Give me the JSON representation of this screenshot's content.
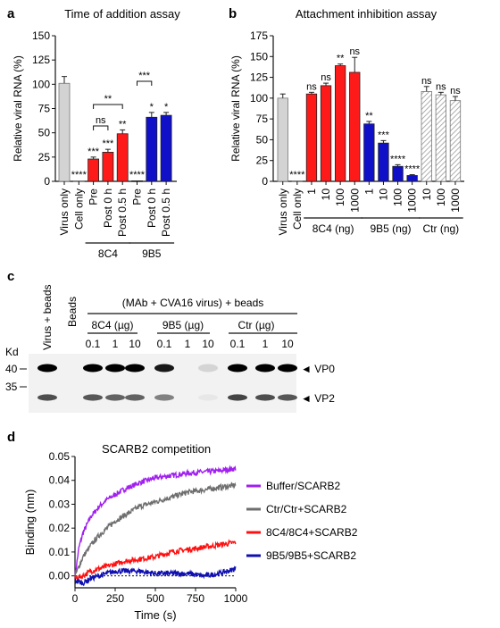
{
  "panels": {
    "a": "a",
    "b": "b",
    "c": "c",
    "d": "d"
  },
  "colors": {
    "gray": "#d3d3d3",
    "red": "#ff1a1a",
    "blue": "#1010c8",
    "hatch": "#bdbdbd",
    "purple": "#a020f0",
    "darkgray": "#6e6e6e",
    "lred": "#ff1010",
    "lblue": "#1010b0"
  },
  "chart_data": [
    {
      "id": "a",
      "type": "bar",
      "title": "Time of addition assay",
      "ylabel": "Relative viral RNA (%)",
      "ylim": [
        0,
        150
      ],
      "yticks": [
        0,
        25,
        50,
        75,
        100,
        125,
        150
      ],
      "categories": [
        "Virus only",
        "Cell only",
        "Pre",
        "Post 0 h",
        "Post 0.5 h",
        "Pre",
        "Post 0 h",
        "Post 0.5 h"
      ],
      "values": [
        101,
        0.5,
        23,
        30,
        49,
        0.5,
        66,
        68
      ],
      "errors": [
        7,
        0.5,
        2,
        3,
        4,
        0.5,
        5,
        3
      ],
      "colors": [
        "gray",
        "gray",
        "red",
        "red",
        "red",
        "blue",
        "blue",
        "blue"
      ],
      "significance": [
        "",
        "****",
        "***",
        "***",
        "**",
        "****",
        "*",
        "*"
      ],
      "comparisons": [
        {
          "from": 2,
          "to": 3,
          "label": "ns"
        },
        {
          "from": 2,
          "to": 4,
          "label": "**"
        },
        {
          "from": 5,
          "to": 6,
          "label": "***"
        }
      ],
      "groups": [
        {
          "label": "8C4",
          "from": 2,
          "to": 4
        },
        {
          "label": "9B5",
          "from": 5,
          "to": 7
        }
      ]
    },
    {
      "id": "b",
      "type": "bar",
      "title": "Attachment inhibition assay",
      "ylabel": "Relative viral RNA (%)",
      "ylim": [
        0,
        175
      ],
      "yticks": [
        0,
        25,
        50,
        75,
        100,
        125,
        150,
        175
      ],
      "categories": [
        "Virus only",
        "Cell only",
        "1",
        "10",
        "100",
        "1000",
        "1",
        "10",
        "100",
        "1000",
        "10",
        "100",
        "1000"
      ],
      "values": [
        100,
        0.5,
        105,
        115,
        139,
        131,
        69,
        46,
        18,
        7,
        108,
        104,
        97
      ],
      "errors": [
        5,
        0.5,
        2,
        3,
        2,
        18,
        3,
        3,
        2,
        1,
        6,
        3,
        5
      ],
      "colors": [
        "gray",
        "gray",
        "red",
        "red",
        "red",
        "red",
        "blue",
        "blue",
        "blue",
        "blue",
        "hatch",
        "hatch",
        "hatch"
      ],
      "significance": [
        "",
        "****",
        "ns",
        "ns",
        "**",
        "ns",
        "**",
        "***",
        "****",
        "****",
        "ns",
        "ns",
        "ns"
      ],
      "groups": [
        {
          "label": "8C4 (ng)",
          "from": 2,
          "to": 5
        },
        {
          "label": "9B5 (ng)",
          "from": 6,
          "to": 9
        },
        {
          "label": "Ctr (ng)",
          "from": 10,
          "to": 12
        }
      ]
    },
    {
      "id": "d",
      "type": "line",
      "title": "SCARB2 competition",
      "xlabel": "Time (s)",
      "ylabel": "Binding (nm)",
      "xlim": [
        0,
        1000
      ],
      "ylim": [
        -0.005,
        0.05
      ],
      "xticks": [
        0,
        250,
        500,
        750,
        1000
      ],
      "yticks": [
        0.0,
        0.01,
        0.02,
        0.03,
        0.04,
        0.05
      ],
      "ytick_labels": [
        "0.00",
        "0.01",
        "0.02",
        "0.03",
        "0.04",
        "0.05"
      ],
      "legend": "right",
      "series": [
        {
          "name": "Buffer/SCARB2",
          "color": "purple",
          "x": [
            0,
            25,
            50,
            100,
            150,
            200,
            250,
            300,
            400,
            500,
            600,
            700,
            800,
            900,
            1000
          ],
          "y": [
            0.0,
            0.012,
            0.018,
            0.025,
            0.029,
            0.032,
            0.034,
            0.036,
            0.039,
            0.041,
            0.042,
            0.043,
            0.0435,
            0.044,
            0.045
          ]
        },
        {
          "name": "Ctr/Ctr+SCARB2",
          "color": "darkgray",
          "x": [
            0,
            25,
            50,
            100,
            150,
            200,
            250,
            300,
            400,
            500,
            600,
            700,
            800,
            900,
            1000
          ],
          "y": [
            0.0,
            0.004,
            0.008,
            0.013,
            0.017,
            0.02,
            0.023,
            0.025,
            0.029,
            0.031,
            0.033,
            0.035,
            0.036,
            0.037,
            0.038
          ]
        },
        {
          "name": "8C4/8C4+SCARB2",
          "color": "lred",
          "x": [
            0,
            50,
            100,
            150,
            200,
            250,
            300,
            400,
            500,
            600,
            700,
            800,
            900,
            1000
          ],
          "y": [
            -0.001,
            0.0,
            0.002,
            0.003,
            0.004,
            0.005,
            0.006,
            0.007,
            0.008,
            0.01,
            0.011,
            0.012,
            0.013,
            0.014
          ]
        },
        {
          "name": "9B5/9B5+SCARB2",
          "color": "lblue",
          "x": [
            0,
            50,
            100,
            150,
            200,
            250,
            300,
            400,
            500,
            600,
            700,
            800,
            900,
            1000
          ],
          "y": [
            -0.002,
            -0.003,
            -0.001,
            0.0,
            0.001,
            0.002,
            0.002,
            0.002,
            0.001,
            0.001,
            0.001,
            0.0,
            0.001,
            0.003
          ]
        }
      ]
    }
  ],
  "blot": {
    "header": "(MAb + CVA16 virus) + beads",
    "lane_virus_beads": "Virus + beads",
    "lane_beads": "Beads",
    "group_labels": [
      "8C4 (µg)",
      "9B5 (µg)",
      "Ctr (µg)"
    ],
    "conc_labels": [
      "0.1",
      "1",
      "10",
      "0.1",
      "1",
      "10",
      "0.1",
      "1",
      "10"
    ],
    "kd_label": "Kd",
    "marker_40": "40",
    "marker_35": "35",
    "vp0": "◄ VP0",
    "vp2": "◄ VP2"
  }
}
